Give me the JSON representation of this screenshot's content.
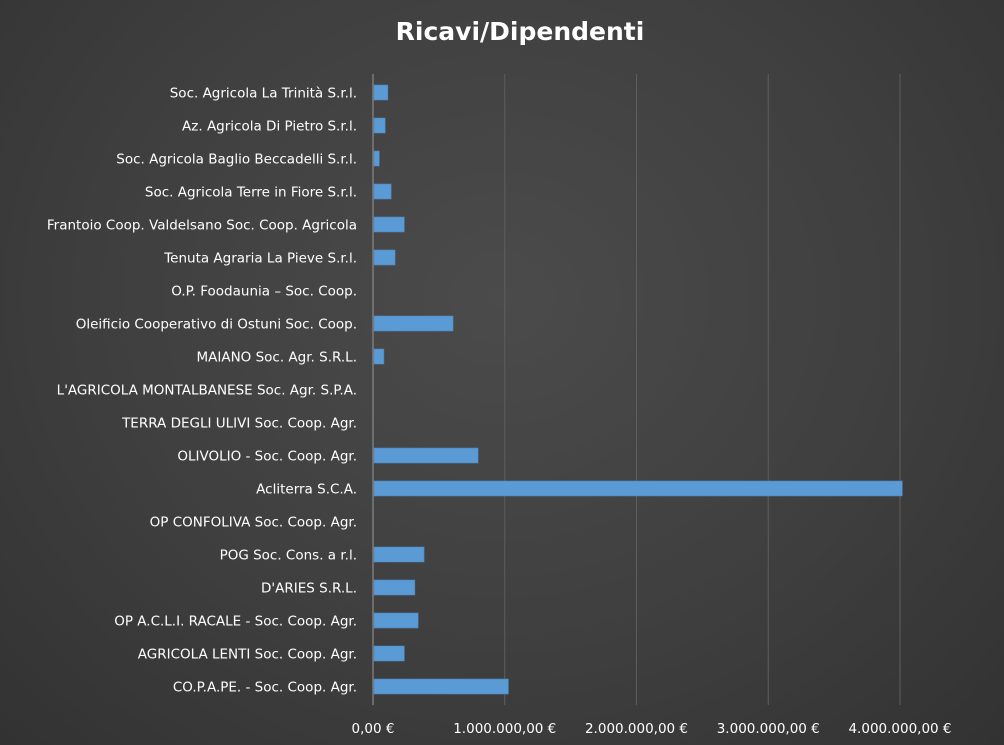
{
  "chart_data": {
    "type": "bar",
    "orientation": "horizontal",
    "title": "Ricavi/Dipendenti",
    "xlabel": "",
    "ylabel": "",
    "xlim": [
      0,
      4500000
    ],
    "tick_values": [
      0,
      1000000,
      2000000,
      3000000,
      4000000
    ],
    "tick_labels": [
      "0,00 €",
      "1.000.000,00 €",
      "2.000.000,00 €",
      "3.000.000,00 €",
      "4.000.000,00 €"
    ],
    "grid": true,
    "legend": "none",
    "bar_color": "#5b9bd5",
    "categories": [
      "Soc. Agricola La Trinità S.r.l.",
      "Az. Agricola Di Pietro S.r.l.",
      "Soc. Agricola Baglio Beccadelli S.r.l.",
      "Soc. Agricola Terre in Fiore S.r.l.",
      "Frantoio Coop. Valdelsano Soc. Coop. Agricola",
      "Tenuta Agraria La Pieve S.r.l.",
      "O.P. Foodaunia –  Soc. Coop.",
      "Oleificio Cooperativo di Ostuni Soc. Coop.",
      "MAIANO Soc. Agr. S.R.L.",
      "L'AGRICOLA MONTALBANESE Soc.  Agr. S.P.A.",
      "TERRA DEGLI ULIVI Soc. Coop. Agr.",
      "OLIVOLIO - Soc. Coop. Agr.",
      "Acliterra S.C.A.",
      "OP CONFOLIVA Soc. Coop. Agr.",
      "POG Soc. Cons. a r.l.",
      "D'ARIES S.R.L.",
      "OP A.C.L.I. RACALE - Soc. Coop. Agr.",
      "AGRICOLA LENTI Soc. Coop. Agr.",
      "CO.P.A.PE. - Soc. Coop. Agr."
    ],
    "values": [
      105000,
      85000,
      40000,
      130000,
      230000,
      160000,
      0,
      600000,
      75000,
      0,
      0,
      790000,
      4010000,
      0,
      380000,
      310000,
      335000,
      230000,
      1020000
    ]
  }
}
